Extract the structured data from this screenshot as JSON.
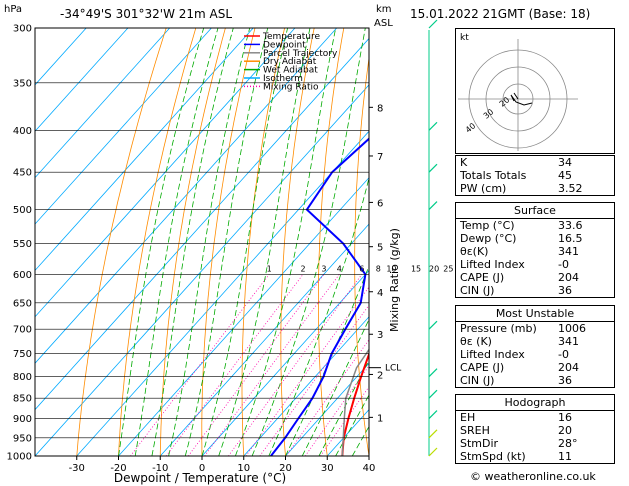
{
  "header": {
    "location": "-34°49'S  301°32'W  21m  ASL",
    "datetime": "15.01.2022  21GMT  (Base: 18)",
    "hpa_label": "hPa",
    "km_label": "km",
    "asl_label": "ASL"
  },
  "legend": [
    {
      "label": "Temperature",
      "color": "#ff0000",
      "style": "solid"
    },
    {
      "label": "Dewpoint",
      "color": "#0000ff",
      "style": "solid"
    },
    {
      "label": "Parcel Trajectory",
      "color": "#888888",
      "style": "solid"
    },
    {
      "label": "Dry Adiabat",
      "color": "#ff8c00",
      "style": "solid"
    },
    {
      "label": "Wet Adiabat",
      "color": "#00aa00",
      "style": "solid"
    },
    {
      "label": "Isotherm",
      "color": "#00aaff",
      "style": "solid"
    },
    {
      "label": "Mixing Ratio",
      "color": "#ff00aa",
      "style": "dotted"
    }
  ],
  "chart_data": {
    "type": "line",
    "xlabel": "Dewpoint / Temperature (°C)",
    "ylabel_right": "Mixing Ratio (g/kg)",
    "pressure_levels": [
      300,
      350,
      400,
      450,
      500,
      550,
      600,
      650,
      700,
      750,
      800,
      850,
      900,
      950,
      1000
    ],
    "x_ticks": [
      -30,
      -20,
      -10,
      0,
      10,
      20,
      30,
      40
    ],
    "xlim": [
      -40,
      40
    ],
    "ylim": [
      1000,
      300
    ],
    "km_ticks": [
      {
        "km": "1",
        "p": 897
      },
      {
        "km": "2",
        "p": 795
      },
      {
        "km": "3",
        "p": 710
      },
      {
        "km": "4",
        "p": 630
      },
      {
        "km": "5",
        "p": 555
      },
      {
        "km": "6",
        "p": 490
      },
      {
        "km": "7",
        "p": 430
      },
      {
        "km": "8",
        "p": 375
      }
    ],
    "lcl": {
      "label": "LCL",
      "p": 780
    },
    "mixing_ratio_labels": [
      "1",
      "2",
      "3",
      "4",
      "6",
      "8",
      "10",
      "15",
      "20",
      "25"
    ],
    "mixing_ratio_values": [
      1,
      2,
      3,
      4,
      6,
      8,
      10,
      15,
      20,
      25
    ],
    "series": [
      {
        "name": "Temperature",
        "color": "#ff0000",
        "points": [
          [
            1000,
            33.6
          ],
          [
            950,
            30
          ],
          [
            900,
            27
          ],
          [
            850,
            24
          ],
          [
            800,
            21
          ],
          [
            750,
            18
          ],
          [
            700,
            14
          ],
          [
            650,
            10
          ],
          [
            600,
            8
          ],
          [
            550,
            5
          ],
          [
            500,
            1
          ],
          [
            450,
            -5
          ],
          [
            400,
            -12
          ],
          [
            370,
            -18
          ]
        ]
      },
      {
        "name": "Dewpoint",
        "color": "#0000ff",
        "points": [
          [
            1000,
            16.5
          ],
          [
            950,
            16
          ],
          [
            900,
            15
          ],
          [
            850,
            14
          ],
          [
            800,
            12
          ],
          [
            750,
            9
          ],
          [
            700,
            7
          ],
          [
            650,
            5
          ],
          [
            600,
            0
          ],
          [
            550,
            -12
          ],
          [
            500,
            -28
          ],
          [
            450,
            -30
          ],
          [
            400,
            -28
          ],
          [
            350,
            -30
          ],
          [
            300,
            -42
          ]
        ]
      },
      {
        "name": "Parcel Trajectory",
        "color": "#888888",
        "points": [
          [
            1000,
            33.6
          ],
          [
            900,
            26
          ],
          [
            850,
            22
          ],
          [
            780,
            18
          ],
          [
            700,
            16
          ],
          [
            650,
            14
          ],
          [
            600,
            12
          ],
          [
            550,
            8
          ],
          [
            500,
            3
          ],
          [
            450,
            -3
          ],
          [
            400,
            -10
          ]
        ]
      }
    ]
  },
  "hodograph": {
    "label": "kt",
    "ring_labels": [
      "40",
      "30",
      "20"
    ]
  },
  "indices": [
    {
      "label": "K",
      "value": "34"
    },
    {
      "label": "Totals Totals",
      "value": "45"
    },
    {
      "label": "PW (cm)",
      "value": "3.52"
    }
  ],
  "surface": {
    "title": "Surface",
    "rows": [
      {
        "label": "Temp (°C)",
        "value": "33.6"
      },
      {
        "label": "Dewp (°C)",
        "value": "16.5"
      },
      {
        "label": "θε(K)",
        "value": "341"
      },
      {
        "label": "Lifted Index",
        "value": "-0"
      },
      {
        "label": "CAPE (J)",
        "value": "204"
      },
      {
        "label": "CIN (J)",
        "value": "36"
      }
    ]
  },
  "most_unstable": {
    "title": "Most Unstable",
    "rows": [
      {
        "label": "Pressure (mb)",
        "value": "1006"
      },
      {
        "label": "θε (K)",
        "value": "341"
      },
      {
        "label": "Lifted Index",
        "value": "-0"
      },
      {
        "label": "CAPE (J)",
        "value": "204"
      },
      {
        "label": "CIN (J)",
        "value": "36"
      }
    ]
  },
  "hodograph_table": {
    "title": "Hodograph",
    "rows": [
      {
        "label": "EH",
        "value": "16"
      },
      {
        "label": "SREH",
        "value": "20"
      },
      {
        "label": "StmDir",
        "value": "28°"
      },
      {
        "label": "StmSpd (kt)",
        "value": "11"
      }
    ]
  },
  "credit": "© weatheronline.co.uk"
}
